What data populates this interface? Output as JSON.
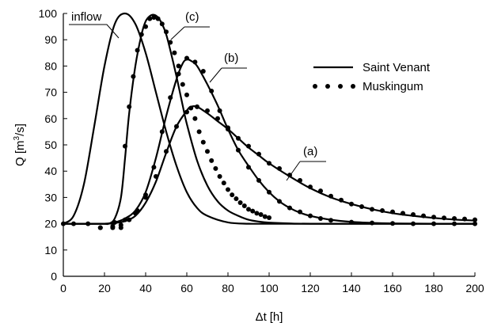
{
  "chart_data": {
    "type": "line",
    "xlabel_main": "Δt",
    "xlabel_unit": "[h]",
    "ylabel_main": "Q [m",
    "ylabel_sup": "3",
    "ylabel_tail": "/s]",
    "xlim": [
      0,
      200
    ],
    "ylim": [
      0,
      100
    ],
    "xticks": [
      "0",
      "20",
      "40",
      "60",
      "80",
      "100",
      "120",
      "140",
      "160",
      "180",
      "200"
    ],
    "yticks": [
      "0",
      "10",
      "20",
      "30",
      "40",
      "50",
      "60",
      "70",
      "80",
      "90",
      "100"
    ],
    "grid": false,
    "legend": {
      "placement": "top-right",
      "entries": [
        {
          "label": "Saint Venant",
          "style": "solid line"
        },
        {
          "label": "Muskingum",
          "style": "dots"
        }
      ]
    },
    "annotations": [
      "inflow",
      "(c)",
      "(b)",
      "(a)"
    ],
    "series": [
      {
        "name": "inflow",
        "method": "Saint Venant",
        "x": [
          0,
          5,
          10,
          15,
          20,
          25,
          30,
          35,
          40,
          45,
          50,
          55,
          60,
          65,
          70,
          80,
          90,
          100,
          120,
          150,
          200
        ],
        "y": [
          20,
          23,
          35,
          57,
          80,
          96,
          100,
          96,
          85,
          70,
          55,
          42,
          32,
          26,
          23,
          20.5,
          20,
          20,
          20,
          20,
          20
        ]
      },
      {
        "name": "(c)",
        "method": "Saint Venant",
        "x": [
          0,
          15,
          20,
          22,
          25,
          28,
          30,
          32,
          35,
          38,
          40,
          42,
          44,
          46,
          48,
          50,
          52,
          55,
          58,
          60,
          65,
          70,
          75,
          80,
          85,
          90,
          95,
          100,
          110,
          120,
          150,
          200
        ],
        "y": [
          20,
          20,
          20,
          20,
          22,
          30,
          45,
          62,
          80,
          92,
          97,
          99,
          99.5,
          98.5,
          96,
          92,
          86,
          76,
          65,
          58,
          44,
          34.5,
          28.5,
          25,
          23,
          21.5,
          20.8,
          20.4,
          20.1,
          20,
          20,
          20
        ]
      },
      {
        "name": "(b)",
        "method": "Saint Venant",
        "x": [
          0,
          20,
          25,
          30,
          35,
          40,
          45,
          50,
          55,
          58,
          60,
          62,
          65,
          70,
          75,
          80,
          85,
          90,
          95,
          100,
          105,
          110,
          115,
          120,
          130,
          140,
          150,
          160,
          180,
          200
        ],
        "y": [
          20,
          20,
          20.5,
          22,
          25,
          32,
          45,
          61,
          75,
          81,
          82.5,
          82,
          80,
          73,
          65,
          56,
          48,
          42,
          36.5,
          32,
          28.5,
          26,
          24.2,
          23,
          21.5,
          20.7,
          20.3,
          20.1,
          20,
          20
        ]
      },
      {
        "name": "(a)",
        "method": "Saint Venant",
        "x": [
          0,
          20,
          25,
          30,
          35,
          40,
          45,
          50,
          55,
          60,
          62,
          65,
          70,
          75,
          80,
          85,
          90,
          95,
          100,
          110,
          120,
          130,
          140,
          150,
          160,
          170,
          180,
          190,
          200
        ],
        "y": [
          20,
          20,
          20.3,
          21,
          23,
          28,
          36,
          47,
          57,
          63,
          64.5,
          64.5,
          62,
          59,
          56,
          52.5,
          49,
          46,
          43,
          38,
          33.5,
          30,
          27.5,
          25.5,
          24,
          23,
          22.2,
          21.6,
          21.2
        ]
      },
      {
        "name": "(c)",
        "method": "Muskingum",
        "x": [
          0,
          5,
          12,
          18,
          24,
          28,
          30,
          32,
          34,
          36,
          38,
          40,
          42,
          44,
          46,
          48,
          50,
          52,
          54,
          56,
          58,
          60,
          62,
          64,
          66,
          68,
          70,
          72,
          74,
          76,
          78,
          80,
          82,
          84,
          86,
          88,
          90,
          92,
          94,
          96,
          98,
          100
        ],
        "y": [
          20,
          20,
          20,
          18.5,
          18.5,
          18.5,
          49.5,
          64.5,
          76,
          86,
          92,
          95,
          98,
          98.5,
          98,
          96,
          93,
          89,
          85,
          80,
          73,
          69,
          64,
          60,
          55,
          51,
          47.5,
          44,
          41,
          38,
          35.5,
          33,
          31,
          29.5,
          28,
          26.8,
          25.5,
          24.8,
          24,
          23.5,
          22.7,
          22.3
        ]
      },
      {
        "name": "(b)",
        "method": "Muskingum",
        "x": [
          18,
          24,
          28,
          32,
          36,
          40,
          44,
          48,
          52,
          56,
          60,
          64,
          68,
          72,
          76,
          80,
          85,
          90,
          95,
          100,
          105,
          110,
          115,
          120,
          125,
          130,
          140,
          150,
          160,
          170,
          180,
          190,
          200
        ],
        "y": [
          18.5,
          19,
          19.5,
          21.5,
          25,
          31,
          41.5,
          55,
          68,
          77,
          83,
          81.5,
          78,
          70.5,
          63,
          56,
          48,
          41.5,
          36.5,
          32,
          28.5,
          26,
          24.5,
          23,
          22,
          21.3,
          20.6,
          20.3,
          20.1,
          20,
          20,
          20,
          20
        ]
      },
      {
        "name": "(a)",
        "method": "Muskingum",
        "x": [
          25,
          30,
          35,
          40,
          45,
          50,
          55,
          60,
          65,
          70,
          75,
          80,
          85,
          90,
          95,
          100,
          105,
          110,
          115,
          120,
          125,
          130,
          135,
          140,
          145,
          150,
          155,
          160,
          165,
          170,
          175,
          180,
          185,
          190,
          195,
          200
        ],
        "y": [
          20.5,
          21.5,
          24,
          30,
          38,
          47.5,
          57,
          62.5,
          64.5,
          63,
          60,
          56.5,
          52.5,
          49.5,
          46.5,
          43,
          41,
          38.5,
          36.5,
          34,
          32.5,
          30.5,
          29,
          27.5,
          26.5,
          25.5,
          25,
          24.5,
          24,
          23.5,
          23,
          22.5,
          22.2,
          22,
          21.8,
          21.5
        ]
      }
    ]
  }
}
